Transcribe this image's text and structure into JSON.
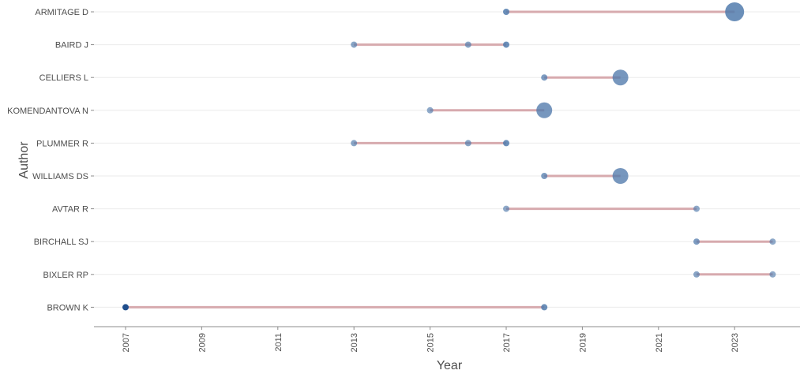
{
  "chart_data": {
    "type": "scatter",
    "xlabel": "Year",
    "ylabel": "Author",
    "xlim": [
      2006.1,
      2024.7
    ],
    "x_ticks": [
      "2007",
      "2009",
      "2011",
      "2013",
      "2015",
      "2017",
      "2019",
      "2021",
      "2023"
    ],
    "grid": "horizontal",
    "colors": {
      "segment": "#d4a2a6",
      "point": "#4f79ab",
      "axis": "#8c8c8c",
      "grid": "#ebebeb"
    },
    "authors": [
      {
        "name": "ARMITAGE D",
        "start": 2017,
        "end": 2023,
        "points": [
          {
            "year": 2017,
            "size": 1,
            "shade": 0.75
          },
          {
            "year": 2023,
            "size": 3,
            "shade": 0.75
          }
        ]
      },
      {
        "name": "BAIRD J",
        "start": 2013,
        "end": 2017,
        "points": [
          {
            "year": 2013,
            "size": 1,
            "shade": 0.5
          },
          {
            "year": 2016,
            "size": 1,
            "shade": 0.5
          },
          {
            "year": 2017,
            "size": 1,
            "shade": 0.75
          }
        ]
      },
      {
        "name": "CELLIERS L",
        "start": 2018,
        "end": 2020,
        "points": [
          {
            "year": 2018,
            "size": 1,
            "shade": 0.6
          },
          {
            "year": 2020,
            "size": 2.5,
            "shade": 0.65
          }
        ]
      },
      {
        "name": "KOMENDANTOVA N",
        "start": 2015,
        "end": 2018,
        "points": [
          {
            "year": 2015,
            "size": 1,
            "shade": 0.45
          },
          {
            "year": 2018,
            "size": 2.5,
            "shade": 0.65
          }
        ]
      },
      {
        "name": "PLUMMER R",
        "start": 2013,
        "end": 2017,
        "points": [
          {
            "year": 2013,
            "size": 1,
            "shade": 0.5
          },
          {
            "year": 2016,
            "size": 1,
            "shade": 0.5
          },
          {
            "year": 2017,
            "size": 1,
            "shade": 0.75
          }
        ]
      },
      {
        "name": "WILLIAMS DS",
        "start": 2018,
        "end": 2020,
        "points": [
          {
            "year": 2018,
            "size": 1,
            "shade": 0.6
          },
          {
            "year": 2020,
            "size": 2.5,
            "shade": 0.65
          }
        ]
      },
      {
        "name": "AVTAR R",
        "start": 2017,
        "end": 2022,
        "points": [
          {
            "year": 2017,
            "size": 1,
            "shade": 0.45
          },
          {
            "year": 2022,
            "size": 1,
            "shade": 0.45
          }
        ]
      },
      {
        "name": "BIRCHALL SJ",
        "start": 2022,
        "end": 2024,
        "points": [
          {
            "year": 2022,
            "size": 1,
            "shade": 0.6
          },
          {
            "year": 2024,
            "size": 1,
            "shade": 0.45
          }
        ]
      },
      {
        "name": "BIXLER RP",
        "start": 2022,
        "end": 2024,
        "points": [
          {
            "year": 2022,
            "size": 1,
            "shade": 0.5
          },
          {
            "year": 2024,
            "size": 1,
            "shade": 0.45
          }
        ]
      },
      {
        "name": "BROWN K",
        "start": 2007,
        "end": 2018,
        "points": [
          {
            "year": 2007,
            "size": 1,
            "shade": 1.0
          },
          {
            "year": 2018,
            "size": 1,
            "shade": 0.75
          }
        ]
      }
    ]
  }
}
